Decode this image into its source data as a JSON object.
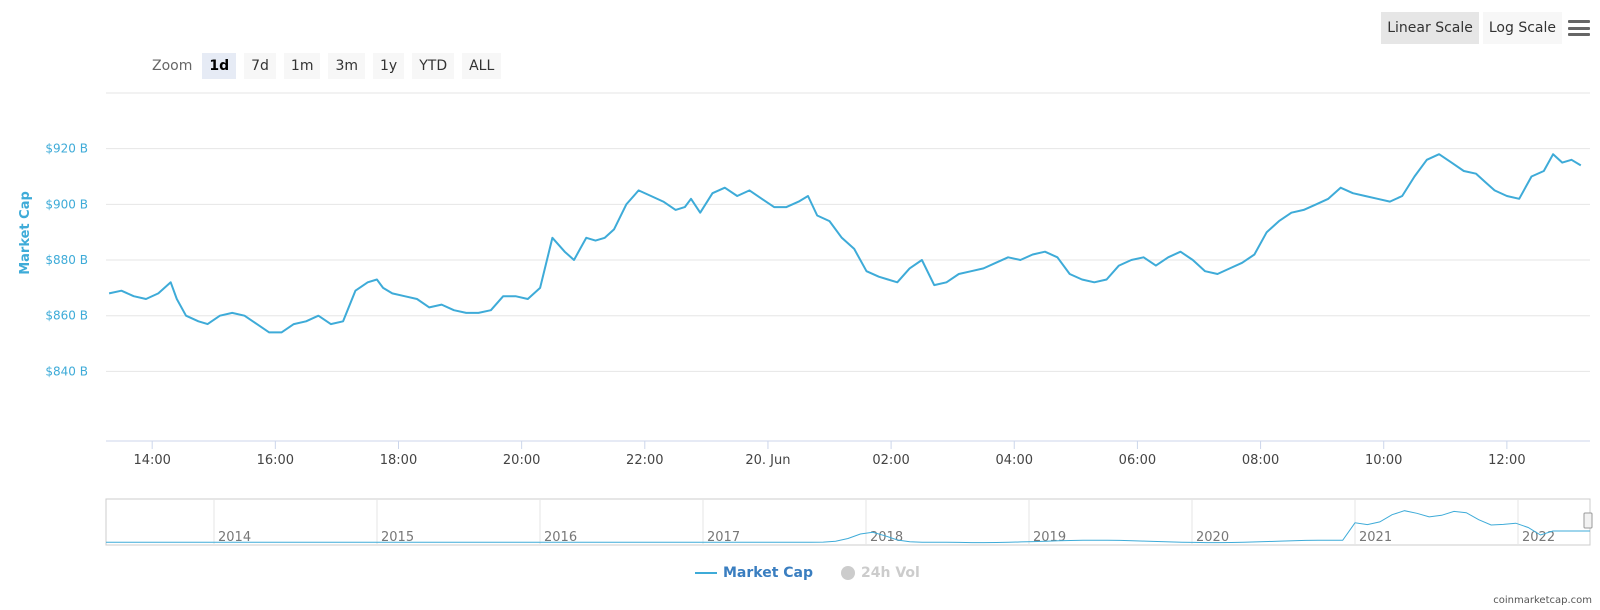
{
  "toolbar": {
    "linear_label": "Linear Scale",
    "log_label": "Log Scale",
    "menu_icon": "hamburger-menu-icon"
  },
  "zoom": {
    "label": "Zoom",
    "buttons": [
      "1d",
      "7d",
      "1m",
      "3m",
      "1y",
      "YTD",
      "ALL"
    ],
    "active": "1d"
  },
  "chart_data": {
    "type": "line",
    "ylabel": "Market Cap",
    "y_ticks": [
      "$840 B",
      "$860 B",
      "$880 B",
      "$900 B",
      "$920 B"
    ],
    "ylim": [
      815,
      940
    ],
    "x_ticks": [
      "14:00",
      "16:00",
      "18:00",
      "20:00",
      "22:00",
      "20. Jun",
      "02:00",
      "04:00",
      "06:00",
      "08:00",
      "10:00",
      "12:00"
    ],
    "x_tick_hours": [
      14,
      16,
      18,
      20,
      22,
      24,
      26,
      28,
      30,
      32,
      34,
      36
    ],
    "xlim_hours": [
      13.25,
      37.35
    ],
    "grid": true,
    "series": [
      {
        "name": "Market Cap",
        "color": "#3eabd8",
        "x_hours": [
          13.3,
          13.5,
          13.7,
          13.9,
          14.1,
          14.3,
          14.4,
          14.55,
          14.75,
          14.9,
          15.1,
          15.3,
          15.5,
          15.7,
          15.9,
          16.1,
          16.3,
          16.5,
          16.7,
          16.9,
          17.1,
          17.3,
          17.5,
          17.65,
          17.75,
          17.9,
          18.1,
          18.3,
          18.5,
          18.7,
          18.9,
          19.1,
          19.3,
          19.5,
          19.7,
          19.9,
          20.1,
          20.3,
          20.5,
          20.7,
          20.85,
          20.95,
          21.05,
          21.2,
          21.35,
          21.5,
          21.7,
          21.9,
          22.1,
          22.3,
          22.5,
          22.65,
          22.75,
          22.9,
          23.1,
          23.3,
          23.5,
          23.7,
          23.9,
          24.1,
          24.3,
          24.5,
          24.65,
          24.8,
          25.0,
          25.2,
          25.4,
          25.6,
          25.8,
          25.95,
          26.1,
          26.3,
          26.5,
          26.7,
          26.9,
          27.1,
          27.3,
          27.5,
          27.7,
          27.9,
          28.1,
          28.3,
          28.5,
          28.7,
          28.9,
          29.1,
          29.3,
          29.5,
          29.7,
          29.9,
          30.1,
          30.3,
          30.5,
          30.7,
          30.9,
          31.1,
          31.3,
          31.5,
          31.7,
          31.9,
          32.1,
          32.3,
          32.5,
          32.7,
          32.9,
          33.1,
          33.3,
          33.5,
          33.7,
          33.9,
          34.1,
          34.3,
          34.5,
          34.7,
          34.9,
          35.1,
          35.3,
          35.5,
          35.65,
          35.8,
          36.0,
          36.2,
          36.4,
          36.6,
          36.75,
          36.9,
          37.05,
          37.2
        ],
        "values": [
          868,
          869,
          867,
          866,
          868,
          872,
          866,
          860,
          858,
          857,
          860,
          861,
          860,
          857,
          854,
          854,
          857,
          858,
          860,
          857,
          858,
          869,
          872,
          873,
          870,
          868,
          867,
          866,
          863,
          864,
          862,
          861,
          861,
          862,
          867,
          867,
          866,
          870,
          888,
          883,
          880,
          884,
          888,
          887,
          888,
          891,
          900,
          905,
          903,
          901,
          898,
          899,
          902,
          897,
          904,
          906,
          903,
          905,
          902,
          899,
          899,
          901,
          903,
          896,
          894,
          888,
          884,
          876,
          874,
          873,
          872,
          877,
          880,
          871,
          872,
          875,
          876,
          877,
          879,
          881,
          880,
          882,
          883,
          881,
          875,
          873,
          872,
          873,
          878,
          880,
          881,
          878,
          881,
          883,
          880,
          876,
          875,
          877,
          879,
          882,
          890,
          894,
          897,
          898,
          900,
          902,
          906,
          904,
          903,
          902,
          901,
          903,
          910,
          916,
          918,
          915,
          912,
          911,
          908,
          905,
          903,
          902,
          910,
          912,
          918,
          915,
          916,
          914
        ],
        "line_color": "#3eabd8"
      }
    ],
    "navigator": {
      "years": [
        "2014",
        "2015",
        "2016",
        "2017",
        "2018",
        "2019",
        "2020",
        "2021",
        "2022"
      ]
    },
    "legend": [
      "Market Cap",
      "24h Vol"
    ]
  },
  "legend": {
    "market_cap": "Market Cap",
    "vol": "24h Vol"
  },
  "credit": "coinmarketcap.com"
}
